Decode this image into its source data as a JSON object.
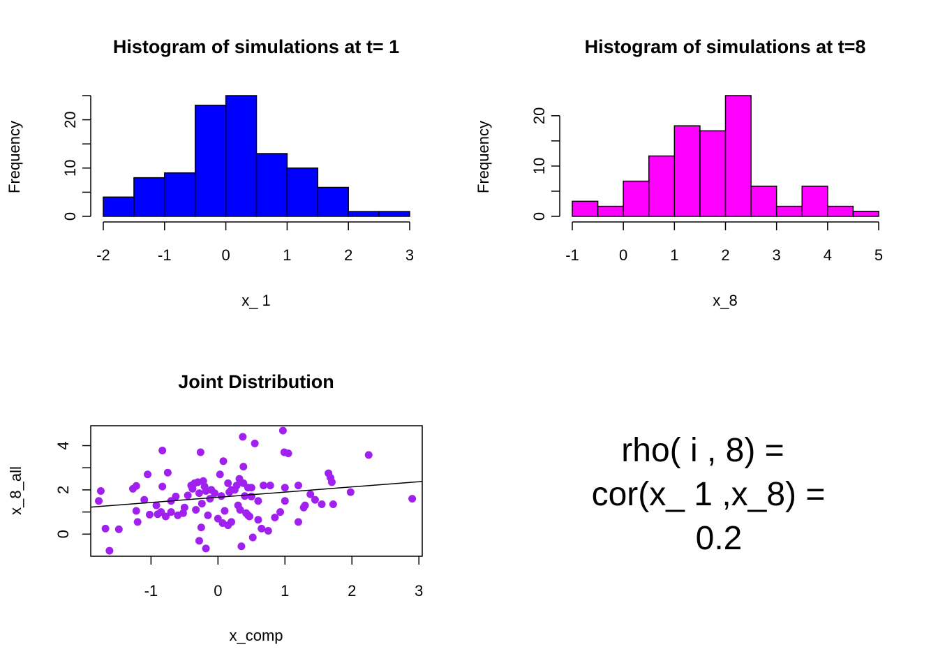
{
  "colors": {
    "hist1": "#0000FF",
    "hist2": "#FF00FF",
    "points": "#A020F0",
    "line": "#000000"
  },
  "chart_data": [
    {
      "type": "bar",
      "id": "hist1",
      "title": "Histogram of simulations at t= 1",
      "xlabel": "x_ 1",
      "ylabel": "Frequency",
      "bin_edges": [
        -2,
        -1.5,
        -1,
        -0.5,
        0,
        0.5,
        1,
        1.5,
        2,
        2.5,
        3
      ],
      "values": [
        4,
        8,
        9,
        23,
        25,
        13,
        10,
        6,
        1,
        1
      ],
      "xlim": [
        -2,
        3
      ],
      "ylim": [
        0,
        25
      ],
      "xticks": [
        "-2",
        "-1",
        "0",
        "1",
        "2",
        "3"
      ],
      "yticks": [
        "0",
        "10",
        "20"
      ]
    },
    {
      "type": "bar",
      "id": "hist2",
      "title": "Histogram of simulations at t=8",
      "xlabel": "x_8",
      "ylabel": "Frequency",
      "bin_edges": [
        -1,
        -0.5,
        0,
        0.5,
        1,
        1.5,
        2,
        2.5,
        3,
        3.5,
        4,
        4.5,
        5
      ],
      "values": [
        3,
        2,
        7,
        12,
        18,
        17,
        24,
        6,
        2,
        6,
        2,
        1
      ],
      "xlim": [
        -1,
        5
      ],
      "ylim": [
        0,
        24
      ],
      "xticks": [
        "-1",
        "0",
        "1",
        "2",
        "3",
        "4",
        "5"
      ],
      "yticks": [
        "0",
        "10",
        "20"
      ]
    },
    {
      "type": "scatter",
      "id": "joint",
      "title": "Joint Distribution",
      "xlabel": "x_comp",
      "ylabel": "x_8_all",
      "xlim": [
        -1.9,
        3.05
      ],
      "ylim": [
        -1.0,
        4.9
      ],
      "xticks": [
        "-1",
        "0",
        "1",
        "2",
        "3"
      ],
      "yticks": [
        "0",
        "2",
        "4"
      ],
      "regression_line": {
        "x": [
          -1.9,
          3.05
        ],
        "y": [
          1.22,
          2.38
        ]
      },
      "points": [
        [
          -1.75,
          1.95
        ],
        [
          -1.78,
          1.5
        ],
        [
          -1.68,
          0.25
        ],
        [
          -1.62,
          -0.75
        ],
        [
          -1.48,
          0.22
        ],
        [
          -1.27,
          2.05
        ],
        [
          -1.22,
          2.18
        ],
        [
          -1.22,
          1.05
        ],
        [
          -1.2,
          0.55
        ],
        [
          -1.1,
          1.55
        ],
        [
          -1.05,
          2.7
        ],
        [
          -1.02,
          0.88
        ],
        [
          -0.92,
          1.3
        ],
        [
          -0.85,
          1.0
        ],
        [
          -0.83,
          2.15
        ],
        [
          -0.83,
          3.78
        ],
        [
          -0.78,
          0.8
        ],
        [
          -0.75,
          2.78
        ],
        [
          -0.7,
          1.0
        ],
        [
          -0.63,
          1.7
        ],
        [
          -0.6,
          0.85
        ],
        [
          -0.52,
          0.95
        ],
        [
          -0.45,
          1.75
        ],
        [
          -0.38,
          2.05
        ],
        [
          -0.35,
          2.3
        ],
        [
          -0.33,
          1.1
        ],
        [
          -0.3,
          2.35
        ],
        [
          -0.28,
          1.85
        ],
        [
          -0.28,
          -0.3
        ],
        [
          -0.26,
          3.7
        ],
        [
          -0.25,
          0.3
        ],
        [
          -0.24,
          1.38
        ],
        [
          -0.22,
          2.4
        ],
        [
          -0.2,
          2.15
        ],
        [
          -0.18,
          1.95
        ],
        [
          -0.18,
          -0.65
        ],
        [
          -0.15,
          0.85
        ],
        [
          -0.12,
          1.6
        ],
        [
          -0.05,
          1.85
        ],
        [
          0.03,
          2.7
        ],
        [
          0.05,
          1.72
        ],
        [
          0.07,
          0.5
        ],
        [
          0.08,
          3.3
        ],
        [
          0.1,
          1.05
        ],
        [
          0.15,
          2.3
        ],
        [
          0.15,
          0.4
        ],
        [
          0.17,
          1.9
        ],
        [
          0.2,
          0.55
        ],
        [
          0.25,
          2.0
        ],
        [
          0.28,
          2.2
        ],
        [
          0.32,
          2.5
        ],
        [
          0.33,
          1.1
        ],
        [
          0.35,
          -0.55
        ],
        [
          0.37,
          4.4
        ],
        [
          0.38,
          2.3
        ],
        [
          0.38,
          3.05
        ],
        [
          0.4,
          1.72
        ],
        [
          0.42,
          0.95
        ],
        [
          0.45,
          2.1
        ],
        [
          0.47,
          0.8
        ],
        [
          0.5,
          1.7
        ],
        [
          0.5,
          2.1
        ],
        [
          0.52,
          -0.15
        ],
        [
          0.55,
          4.1
        ],
        [
          0.6,
          0.65
        ],
        [
          0.65,
          0.25
        ],
        [
          0.68,
          2.2
        ],
        [
          0.75,
          0.15
        ],
        [
          0.78,
          2.2
        ],
        [
          0.85,
          0.75
        ],
        [
          0.93,
          1.0
        ],
        [
          0.97,
          4.68
        ],
        [
          0.99,
          3.7
        ],
        [
          1.0,
          2.1
        ],
        [
          1.05,
          3.65
        ],
        [
          1.2,
          2.2
        ],
        [
          1.2,
          0.55
        ],
        [
          1.28,
          1.2
        ],
        [
          1.3,
          1.3
        ],
        [
          1.38,
          1.8
        ],
        [
          1.45,
          1.55
        ],
        [
          1.55,
          1.35
        ],
        [
          1.65,
          2.75
        ],
        [
          1.68,
          2.55
        ],
        [
          1.7,
          2.35
        ],
        [
          1.72,
          1.35
        ],
        [
          1.98,
          1.9
        ],
        [
          2.25,
          3.58
        ],
        [
          2.9,
          1.6
        ],
        [
          0.45,
          0.85
        ],
        [
          -0.4,
          2.2
        ],
        [
          0.0,
          0.7
        ],
        [
          -0.7,
          1.5
        ],
        [
          1.0,
          1.5
        ],
        [
          0.3,
          1.3
        ],
        [
          -0.5,
          1.2
        ],
        [
          0.6,
          1.5
        ],
        [
          -0.1,
          2.0
        ],
        [
          0.2,
          2.0
        ],
        [
          -0.9,
          0.9
        ]
      ]
    }
  ],
  "annotation": {
    "line1": "rho( i , 8) =",
    "line2": "cor(x_ 1 ,x_8) =",
    "line3": "0.2"
  }
}
